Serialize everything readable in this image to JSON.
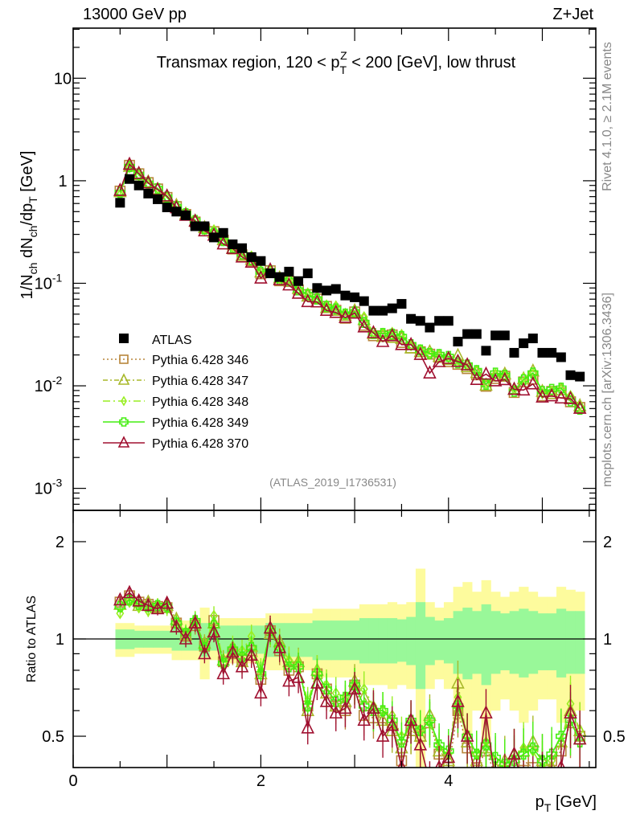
{
  "header": {
    "left": "13000 GeV pp",
    "right": "Z+Jet"
  },
  "side_labels": {
    "rivet": "Rivet 4.1.0, ≥ 2.1M events",
    "mcplots": "mcplots.cern.ch [arXiv:1306.3436]"
  },
  "analysis_id": "(ATLAS_2019_I1736531)",
  "chart_data": [
    {
      "type": "scatter",
      "panel": "main",
      "title_parts": [
        "Transmax region, 120 < p",
        "T",
        "Z",
        " < 200 [GeV], low thrust"
      ],
      "ylabel_parts": [
        "1/N",
        "ch",
        " dN",
        "ch",
        "/dp",
        "T",
        " [GeV]"
      ],
      "xlabel_parts": [
        "p",
        "T",
        " [GeV]"
      ],
      "xlim": [
        0,
        5.57
      ],
      "ylim": [
        0.00061,
        30.8
      ],
      "yscale": "log",
      "yticks": [
        {
          "v": 0.001,
          "base": "10",
          "exp": "-3"
        },
        {
          "v": 0.01,
          "base": "10",
          "exp": "-2"
        },
        {
          "v": 0.1,
          "base": "10",
          "exp": "-1"
        },
        {
          "v": 1,
          "base": "1",
          "exp": ""
        },
        {
          "v": 10,
          "base": "10",
          "exp": ""
        }
      ],
      "legend_position": "center-left",
      "x": [
        0.5,
        0.6,
        0.7,
        0.8,
        0.9,
        1.0,
        1.1,
        1.2,
        1.3,
        1.4,
        1.5,
        1.6,
        1.7,
        1.8,
        1.9,
        2.0,
        2.1,
        2.2,
        2.3,
        2.4,
        2.5,
        2.6,
        2.7,
        2.8,
        2.9,
        3.0,
        3.1,
        3.2,
        3.3,
        3.4,
        3.5,
        3.6,
        3.7,
        3.8,
        3.9,
        4.0,
        4.1,
        4.2,
        4.3,
        4.4,
        4.5,
        4.6,
        4.7,
        4.8,
        4.9,
        5.0,
        5.1,
        5.2,
        5.3,
        5.4
      ],
      "atlas": {
        "name": "ATLAS",
        "values": [
          0.61,
          1.04,
          0.9,
          0.75,
          0.66,
          0.55,
          0.5,
          0.46,
          0.36,
          0.36,
          0.28,
          0.31,
          0.24,
          0.22,
          0.18,
          0.165,
          0.125,
          0.115,
          0.13,
          0.105,
          0.125,
          0.09,
          0.085,
          0.088,
          0.076,
          0.073,
          0.067,
          0.054,
          0.054,
          0.057,
          0.063,
          0.045,
          0.043,
          0.037,
          0.043,
          0.043,
          0.027,
          0.032,
          0.032,
          0.022,
          0.031,
          0.031,
          0.021,
          0.026,
          0.029,
          0.021,
          0.021,
          0.019,
          0.0127,
          0.0123
        ]
      },
      "series": [
        {
          "name": "Pythia 6.428 346",
          "color": "#b8863b",
          "marker": "square",
          "dash": "2,3",
          "ratio": [
            1.3,
            1.36,
            1.3,
            1.28,
            1.26,
            1.25,
            1.12,
            1.02,
            1.1,
            0.95,
            1.14,
            0.85,
            0.9,
            0.86,
            0.92,
            0.75,
            1.06,
            0.92,
            0.8,
            0.82,
            0.62,
            0.78,
            0.7,
            0.62,
            0.6,
            0.72,
            0.58,
            0.57,
            0.57,
            0.55,
            0.42,
            0.52,
            0.5,
            0.55,
            0.44,
            0.4,
            0.6,
            0.46,
            0.4,
            0.45,
            0.38,
            0.4,
            0.41,
            0.42,
            0.4,
            0.38,
            0.42,
            0.45,
            0.55,
            0.5
          ]
        },
        {
          "name": "Pythia 6.428 347",
          "color": "#a8b82a",
          "marker": "triangle",
          "dash": "6,3,2,3",
          "ratio": [
            1.28,
            1.33,
            1.27,
            1.3,
            1.25,
            1.27,
            1.15,
            1.03,
            1.12,
            0.97,
            1.12,
            0.86,
            0.92,
            0.85,
            0.95,
            0.78,
            1.04,
            0.98,
            0.85,
            0.85,
            0.6,
            0.8,
            0.68,
            0.62,
            0.64,
            0.74,
            0.66,
            0.6,
            0.56,
            0.52,
            0.46,
            0.52,
            0.5,
            0.58,
            0.45,
            0.42,
            0.73,
            0.48,
            0.42,
            0.46,
            0.4,
            0.42,
            0.44,
            0.45,
            0.48,
            0.42,
            0.4,
            0.48,
            0.6,
            0.52
          ]
        },
        {
          "name": "Pythia 6.428 348",
          "color": "#99ee22",
          "marker": "diamond",
          "dash": "9,4,2,4",
          "ratio": [
            1.2,
            1.3,
            1.25,
            1.22,
            1.28,
            1.24,
            1.13,
            1.05,
            1.15,
            0.93,
            1.18,
            0.84,
            0.95,
            0.92,
            1.02,
            0.8,
            1.05,
            0.96,
            0.86,
            0.84,
            0.64,
            0.8,
            0.72,
            0.68,
            0.66,
            0.72,
            0.7,
            0.62,
            0.6,
            0.58,
            0.5,
            0.55,
            0.52,
            0.55,
            0.46,
            0.44,
            0.66,
            0.5,
            0.44,
            0.48,
            0.42,
            0.4,
            0.44,
            0.46,
            0.45,
            0.4,
            0.42,
            0.48,
            0.63,
            0.52
          ]
        },
        {
          "name": "Pythia 6.428 349",
          "color": "#44ee11",
          "marker": "cross",
          "dash": "",
          "ratio": [
            1.26,
            1.32,
            1.28,
            1.26,
            1.27,
            1.26,
            1.12,
            1.04,
            1.14,
            0.94,
            1.1,
            0.84,
            0.93,
            0.88,
            0.94,
            0.78,
            1.06,
            0.94,
            0.82,
            0.82,
            0.62,
            0.78,
            0.7,
            0.64,
            0.66,
            0.72,
            0.62,
            0.6,
            0.6,
            0.56,
            0.48,
            0.56,
            0.52,
            0.56,
            0.47,
            0.45,
            0.62,
            0.5,
            0.44,
            0.47,
            0.43,
            0.41,
            0.42,
            0.44,
            0.46,
            0.42,
            0.44,
            0.5,
            0.56,
            0.48
          ]
        },
        {
          "name": "Pythia 6.428 370",
          "color": "#a01030",
          "marker": "triangle",
          "dash": "",
          "ratio": [
            1.32,
            1.39,
            1.31,
            1.27,
            1.24,
            1.29,
            1.09,
            1.0,
            1.12,
            0.9,
            1.05,
            0.78,
            0.91,
            0.82,
            0.89,
            0.68,
            1.08,
            0.94,
            0.74,
            0.76,
            0.53,
            0.73,
            0.64,
            0.59,
            0.61,
            0.7,
            0.56,
            0.61,
            0.5,
            0.54,
            0.4,
            0.56,
            0.47,
            0.36,
            0.4,
            0.43,
            0.64,
            0.5,
            0.36,
            0.59,
            0.36,
            0.37,
            0.44,
            0.35,
            0.36,
            0.37,
            0.38,
            0.4,
            0.59,
            0.49
          ]
        }
      ]
    },
    {
      "type": "band",
      "panel": "ratio",
      "ylabel": "Ratio to ATLAS",
      "ylim": [
        0.4,
        2.5
      ],
      "yscale": "log",
      "yticks": [
        {
          "v": 0.5,
          "label": "0.5"
        },
        {
          "v": 1,
          "label": "1"
        },
        {
          "v": 2,
          "label": "2"
        }
      ],
      "xticks": [
        {
          "v": 0,
          "label": "0"
        },
        {
          "v": 2,
          "label": "2"
        },
        {
          "v": 4,
          "label": "4"
        }
      ],
      "stat_color": "#99f899",
      "total_color": "#fdfb9d",
      "stat_rel_err": [
        0.07,
        0.07,
        0.06,
        0.06,
        0.06,
        0.06,
        0.08,
        0.08,
        0.08,
        0.12,
        0.08,
        0.1,
        0.1,
        0.1,
        0.1,
        0.1,
        0.12,
        0.12,
        0.12,
        0.12,
        0.12,
        0.14,
        0.14,
        0.14,
        0.14,
        0.14,
        0.16,
        0.16,
        0.16,
        0.16,
        0.15,
        0.17,
        0.3,
        0.17,
        0.14,
        0.16,
        0.22,
        0.25,
        0.22,
        0.28,
        0.22,
        0.2,
        0.22,
        0.24,
        0.22,
        0.2,
        0.2,
        0.24,
        0.22,
        0.22
      ],
      "total_rel_err": [
        0.12,
        0.12,
        0.1,
        0.1,
        0.1,
        0.1,
        0.14,
        0.14,
        0.14,
        0.25,
        0.14,
        0.16,
        0.16,
        0.16,
        0.16,
        0.16,
        0.2,
        0.2,
        0.2,
        0.2,
        0.2,
        0.24,
        0.24,
        0.24,
        0.24,
        0.24,
        0.28,
        0.28,
        0.28,
        0.3,
        0.28,
        0.3,
        0.65,
        0.3,
        0.25,
        0.3,
        0.45,
        0.5,
        0.4,
        0.52,
        0.4,
        0.35,
        0.4,
        0.45,
        0.4,
        0.35,
        0.35,
        0.45,
        0.42,
        0.4
      ]
    }
  ]
}
